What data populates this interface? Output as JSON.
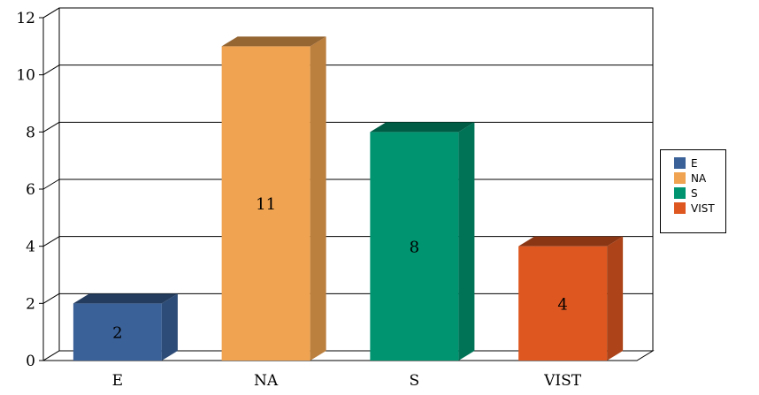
{
  "chart_data": {
    "type": "bar",
    "categories": [
      "E",
      "NA",
      "S",
      "VIST"
    ],
    "values": [
      2,
      11,
      8,
      4
    ],
    "colors": [
      "#3A6198",
      "#F0A350",
      "#009470",
      "#DE5720"
    ],
    "y_ticks": [
      "0",
      "2",
      "4",
      "6",
      "8",
      "10",
      "12"
    ],
    "ylim": [
      0,
      12
    ],
    "grid": true,
    "three_d": true,
    "legend": {
      "position": "right",
      "entries": [
        "E",
        "NA",
        "S",
        "VIST"
      ]
    }
  }
}
